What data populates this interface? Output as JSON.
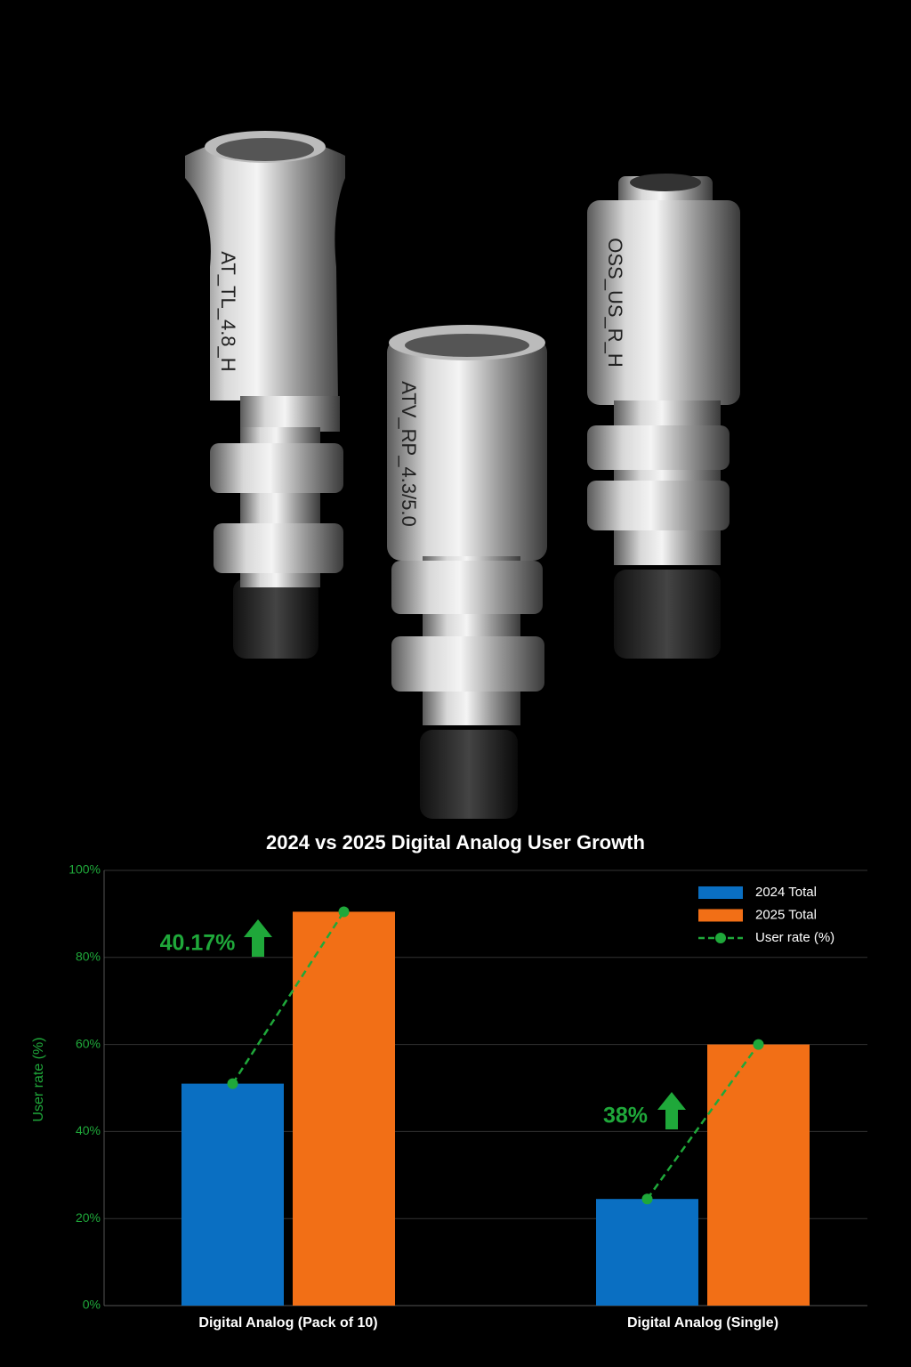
{
  "product_labels": [
    "AT_TL_4.8_H",
    "ATV_RP_4.3/5.0",
    "OSS_US_R_H"
  ],
  "chart_data": {
    "type": "bar",
    "title": "2024 vs 2025 Digital Analog User Growth",
    "y_label": "User rate (%)",
    "categories": [
      "Digital Analog (Pack of 10)",
      "Digital Analog (Single)"
    ],
    "series": [
      {
        "name": "2024 Total",
        "color": "#0a6fc2",
        "values": [
          51,
          24.5
        ]
      },
      {
        "name": "2025 Total",
        "color": "#f26f16",
        "values": [
          90.5,
          60
        ]
      },
      {
        "name": "User rate (%)",
        "type": "line",
        "color": "#1fa83a",
        "values": [
          [
            51,
            90.5
          ],
          [
            24.5,
            60
          ]
        ]
      }
    ],
    "annotations": [
      "40.17%",
      "38%"
    ],
    "ylim": [
      0,
      100
    ],
    "yticks": [
      {
        "value": 0,
        "label": "0%"
      },
      {
        "value": 20,
        "label": "20%"
      },
      {
        "value": 40,
        "label": "40%"
      },
      {
        "value": 60,
        "label": "60%"
      },
      {
        "value": 80,
        "label": "80%"
      },
      {
        "value": 100,
        "label": "100%"
      }
    ],
    "grid": true,
    "legend": "top-right"
  }
}
